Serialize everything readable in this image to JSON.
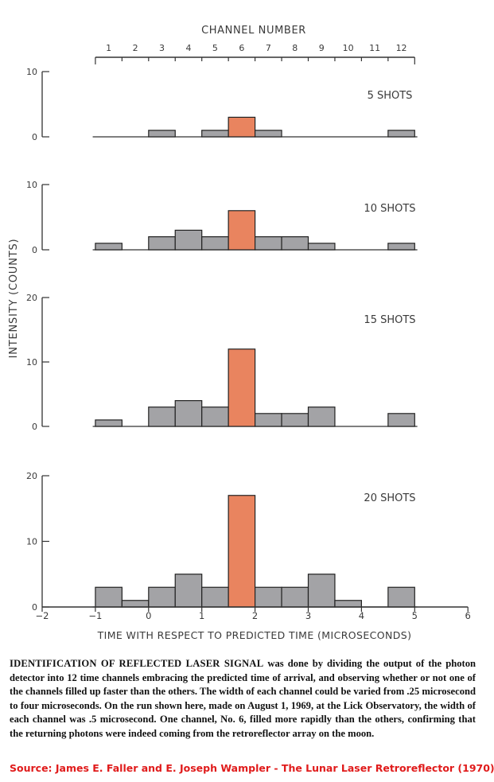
{
  "chart_data": {
    "type": "bar",
    "title": "CHANNEL NUMBER",
    "xlabel": "TIME WITH RESPECT TO PREDICTED TIME (MICROSECONDS)",
    "ylabel": "INTENSITY (COUNTS)",
    "channel_labels": [
      "1",
      "2",
      "3",
      "4",
      "5",
      "6",
      "7",
      "8",
      "9",
      "10",
      "11",
      "12"
    ],
    "time_ticks": [
      "−2",
      "−1",
      "0",
      "1",
      "2",
      "3",
      "4",
      "5",
      "6"
    ],
    "xlim": [
      -2,
      6
    ],
    "bin_start": -1,
    "bin_width": 0.5,
    "highlight_channel": 6,
    "colors": {
      "normal": "#a3a3a6",
      "highlight": "#e9845f",
      "edge": "#222222",
      "axis": "#333333"
    },
    "panels": [
      {
        "label": "5 SHOTS",
        "ylim": [
          0,
          10
        ],
        "yticks": [
          "0",
          "10"
        ],
        "values": [
          0,
          0,
          1,
          0,
          1,
          3,
          1,
          0,
          0,
          0,
          0,
          1
        ]
      },
      {
        "label": "10 SHOTS",
        "ylim": [
          0,
          10
        ],
        "yticks": [
          "0",
          "10"
        ],
        "values": [
          1,
          0,
          2,
          3,
          2,
          6,
          2,
          2,
          1,
          0,
          0,
          1
        ]
      },
      {
        "label": "15 SHOTS",
        "ylim": [
          0,
          20
        ],
        "yticks": [
          "0",
          "10",
          "20"
        ],
        "values": [
          1,
          0,
          3,
          4,
          3,
          12,
          2,
          2,
          3,
          0,
          0,
          2
        ]
      },
      {
        "label": "20 SHOTS",
        "ylim": [
          0,
          20
        ],
        "yticks": [
          "0",
          "10",
          "20"
        ],
        "values": [
          3,
          1,
          3,
          5,
          3,
          17,
          3,
          3,
          5,
          1,
          0,
          3
        ]
      }
    ]
  },
  "caption": {
    "lead": "IDENTIFICATION OF REFLECTED LASER SIGNAL",
    "body": " was done by dividing the output of the photon detector into 12 time channels embracing the predicted time of arrival, and observing whether or not one of the channels filled up faster than the others. The width of each channel could be varied from .25 microsecond to four microseconds. On the run shown here, made on August 1, 1969, at the Lick Observatory, the width of each channel was .5 microsecond. One channel, No. 6, filled more rapidly than the others, confirming that the returning photons were indeed coming from the retroreflector array on the moon."
  },
  "source": "Source: James E. Faller and E. Joseph Wampler - The Lunar Laser Retroreflector (1970)"
}
